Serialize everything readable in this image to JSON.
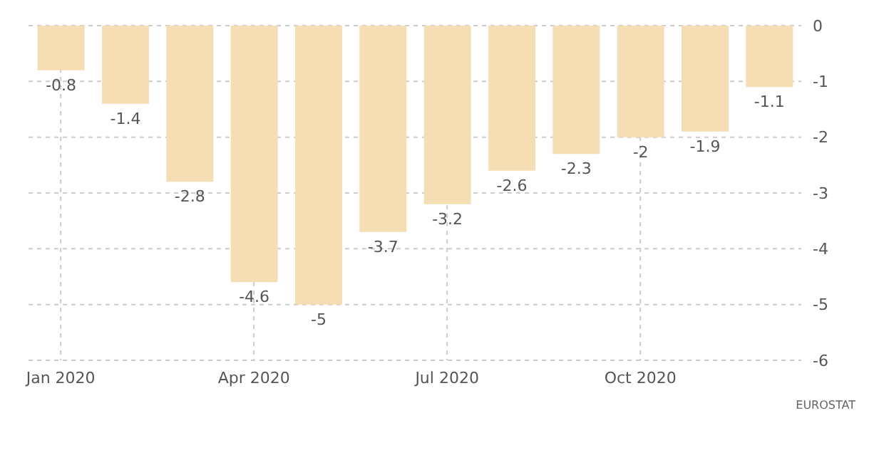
{
  "chart_data": {
    "type": "bar",
    "categories": [
      "Jan 2020",
      null,
      null,
      "Apr 2020",
      null,
      null,
      "Jul 2020",
      null,
      null,
      "Oct 2020",
      null,
      null
    ],
    "values": [
      -0.8,
      -1.4,
      -2.8,
      -4.6,
      -5,
      -3.7,
      -3.2,
      -2.6,
      -2.3,
      -2,
      -1.9,
      -1.1
    ],
    "color": "#f5deb3",
    "ylim": [
      -6,
      0
    ],
    "yticks": [
      0,
      -1,
      -2,
      -3,
      -4,
      -5,
      -6
    ],
    "grid": true,
    "data_labels": true,
    "annotations": [
      "EUROSTAT"
    ]
  }
}
